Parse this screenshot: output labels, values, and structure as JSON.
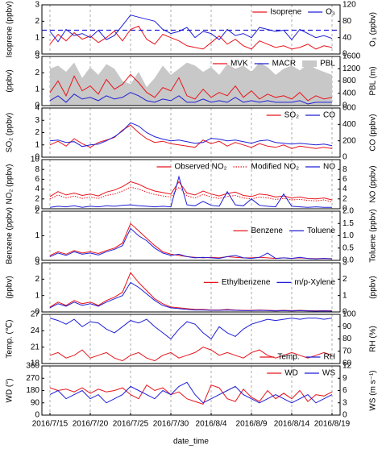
{
  "chart_data": [
    {
      "type": "line",
      "ylabel": "Isoprene (ppbv)",
      "y2label": "O₃ (ppbv)",
      "ylim": [
        0,
        3
      ],
      "yticks": [
        0,
        1,
        2,
        3
      ],
      "y2lim": [
        0,
        120
      ],
      "y2ticks": [
        0,
        40,
        80,
        120
      ],
      "legend": "top-right",
      "hline": 1.45,
      "hline_color": "#1f1fd6",
      "series": [
        {
          "name": "Isoprene",
          "color": "#e8141c",
          "values": [
            0.6,
            1.2,
            0.8,
            1.3,
            0.9,
            1.1,
            0.7,
            1.0,
            1.4,
            0.8,
            1.5,
            1.7,
            0.9,
            0.6,
            1.2,
            1.0,
            0.8,
            0.5,
            0.4,
            0.3,
            0.7,
            1.1,
            0.6,
            0.9,
            0.5,
            0.3,
            0.8,
            0.6,
            0.4,
            0.5,
            0.3,
            0.4,
            0.6,
            0.3,
            0.5,
            0.4
          ]
        },
        {
          "name": "O₃",
          "color": "#1f1fd6",
          "axis": "y2",
          "values": [
            55,
            30,
            60,
            45,
            50,
            40,
            58,
            35,
            45,
            70,
            95,
            90,
            85,
            80,
            60,
            50,
            55,
            65,
            40,
            55,
            50,
            35,
            60,
            45,
            50,
            40,
            65,
            60,
            55,
            58,
            35,
            60,
            50,
            40,
            45,
            38
          ]
        }
      ]
    },
    {
      "type": "line",
      "ylabel": "(ppbv)",
      "y2label": "PBL (m)",
      "ylim": [
        0,
        3
      ],
      "yticks": [
        0,
        1,
        2,
        3
      ],
      "y2lim": [
        0,
        1600
      ],
      "y2ticks": [
        0,
        400,
        800,
        1200,
        1600
      ],
      "legend": "top-right",
      "series": [
        {
          "name": "MVK",
          "color": "#e8141c",
          "values": [
            0.8,
            1.5,
            0.6,
            1.8,
            0.9,
            1.2,
            0.7,
            1.6,
            1.0,
            1.3,
            1.9,
            1.4,
            0.8,
            0.5,
            1.1,
            0.9,
            1.7,
            0.6,
            0.4,
            1.0,
            0.5,
            0.8,
            0.6,
            1.2,
            0.5,
            0.9,
            0.4,
            0.7,
            0.5,
            0.6,
            0.4,
            0.8,
            0.3,
            0.6,
            0.4,
            0.5
          ]
        },
        {
          "name": "MACR",
          "color": "#1f1fd6",
          "values": [
            0.3,
            0.6,
            0.2,
            0.7,
            0.4,
            0.5,
            0.3,
            0.6,
            0.4,
            0.5,
            0.8,
            0.6,
            0.3,
            0.2,
            0.4,
            0.3,
            0.6,
            0.2,
            0.2,
            0.4,
            0.2,
            0.3,
            0.2,
            0.5,
            0.2,
            0.3,
            0.2,
            0.3,
            0.2,
            0.2,
            0.2,
            0.3,
            0.1,
            0.2,
            0.2,
            0.2
          ]
        },
        {
          "name": "PBL",
          "color": "#c8c8c8",
          "axis": "y2",
          "style": "area",
          "values": [
            1200,
            1300,
            1100,
            1400,
            900,
            1250,
            1000,
            1350,
            1200,
            800,
            700,
            1100,
            600,
            900,
            1300,
            1000,
            1200,
            1400,
            1300,
            1100,
            1250,
            1000,
            1350,
            1200,
            1300,
            1100,
            1400,
            1250,
            1000,
            1200,
            1300,
            1150,
            1350,
            1200,
            1100,
            1000
          ]
        }
      ]
    },
    {
      "type": "line",
      "ylabel": "SO₂ (ppbv)",
      "y2label": "CO (ppbv)",
      "ylim": [
        0,
        4
      ],
      "yticks": [
        0,
        1,
        2,
        3,
        4
      ],
      "y2lim": [
        0,
        600
      ],
      "y2ticks": [
        0,
        200,
        400,
        600
      ],
      "legend": "top-right",
      "series": [
        {
          "name": "SO₂",
          "color": "#e8141c",
          "values": [
            1.0,
            1.3,
            0.9,
            1.5,
            1.1,
            0.8,
            1.2,
            1.4,
            1.6,
            2.2,
            2.6,
            2.0,
            1.5,
            1.2,
            1.3,
            1.1,
            1.0,
            0.9,
            0.8,
            1.4,
            1.1,
            1.3,
            0.9,
            1.2,
            1.0,
            0.8,
            1.1,
            0.9,
            0.8,
            1.0,
            0.7,
            0.9,
            0.8,
            0.7,
            0.8,
            0.7
          ]
        },
        {
          "name": "CO",
          "color": "#1f1fd6",
          "axis": "y2",
          "values": [
            200,
            210,
            180,
            190,
            130,
            150,
            160,
            200,
            250,
            320,
            420,
            380,
            300,
            250,
            220,
            200,
            210,
            190,
            170,
            180,
            230,
            220,
            200,
            210,
            190,
            170,
            200,
            210,
            180,
            170,
            160,
            170,
            160,
            150,
            160,
            140
          ]
        }
      ]
    },
    {
      "type": "line",
      "ylabel": "NO₂ (ppbv)",
      "y2label": "NO (ppbv)",
      "ylim": [
        0,
        10
      ],
      "yticks": [
        0,
        2,
        4,
        6,
        8,
        10
      ],
      "y2lim": [
        0,
        10
      ],
      "y2ticks": [
        0,
        2,
        4,
        6,
        8
      ],
      "legend": "top-right",
      "series": [
        {
          "name": "Observed NO₂",
          "color": "#e8141c",
          "values": [
            2.5,
            3.5,
            2.8,
            3.2,
            2.7,
            3.0,
            2.6,
            3.4,
            3.8,
            4.5,
            5.5,
            5.0,
            4.2,
            3.6,
            3.3,
            3.0,
            5.5,
            3.2,
            2.8,
            3.6,
            3.0,
            2.6,
            3.1,
            3.4,
            2.7,
            2.5,
            3.0,
            2.8,
            2.4,
            2.6,
            2.2,
            2.4,
            2.1,
            2.0,
            2.2,
            1.8
          ]
        },
        {
          "name": "Modified NO₂",
          "color": "#e8141c",
          "style": "dotted",
          "values": [
            2.0,
            2.8,
            2.2,
            2.6,
            2.1,
            2.4,
            2.1,
            2.7,
            3.0,
            3.6,
            4.4,
            4.0,
            3.4,
            2.9,
            2.6,
            2.4,
            4.4,
            2.6,
            2.2,
            2.9,
            2.4,
            2.1,
            2.5,
            2.7,
            2.2,
            2.0,
            2.4,
            2.2,
            1.9,
            2.1,
            1.8,
            1.9,
            1.7,
            1.6,
            1.8,
            1.4
          ]
        },
        {
          "name": "NO",
          "color": "#1f1fd6",
          "axis": "y2",
          "values": [
            0.3,
            0.5,
            0.4,
            0.6,
            0.3,
            0.5,
            0.4,
            0.6,
            0.5,
            0.7,
            0.8,
            0.6,
            0.5,
            0.4,
            0.5,
            0.4,
            6.5,
            0.8,
            0.6,
            1.5,
            0.7,
            0.5,
            3.5,
            0.8,
            0.6,
            2.0,
            0.7,
            0.5,
            0.4,
            3.0,
            0.5,
            0.4,
            0.3,
            0.4,
            0.3,
            0.3
          ]
        }
      ]
    },
    {
      "type": "line",
      "ylabel": "Benzene (ppbv)",
      "y2label": "Toluene (ppbv)",
      "ylim": [
        0,
        2
      ],
      "yticks": [
        0,
        1,
        2
      ],
      "y2lim": [
        0,
        2
      ],
      "y2ticks": [
        {
          "value": 0,
          "label": "0.0"
        },
        {
          "value": 0.5,
          "label": "0.5"
        },
        {
          "value": 1,
          "label": "1.0"
        },
        {
          "value": 1.5,
          "label": "1.5"
        },
        {
          "value": 2,
          "label": "2.0"
        }
      ],
      "legend": "middle-right",
      "series": [
        {
          "name": "Benzene",
          "color": "#e8141c",
          "values": [
            0.2,
            0.35,
            0.25,
            0.4,
            0.3,
            0.35,
            0.28,
            0.4,
            0.5,
            0.7,
            1.5,
            1.2,
            0.9,
            0.6,
            0.35,
            0.25,
            0.2,
            0.15,
            0.12,
            0.1,
            0.12,
            0.1,
            0.15,
            0.12,
            0.1,
            0.1,
            0.12,
            0.1,
            0.08,
            0.1,
            0.08,
            0.1,
            0.08,
            0.07,
            0.08,
            0.07
          ]
        },
        {
          "name": "Toluene",
          "color": "#1f1fd6",
          "axis": "y2",
          "values": [
            0.15,
            0.3,
            0.2,
            0.35,
            0.25,
            0.3,
            0.22,
            0.35,
            0.45,
            0.6,
            1.3,
            1.0,
            0.8,
            0.5,
            0.3,
            0.2,
            0.25,
            0.15,
            0.1,
            0.12,
            0.1,
            0.08,
            0.15,
            0.2,
            0.1,
            0.08,
            0.12,
            0.3,
            0.08,
            0.1,
            0.08,
            0.12,
            0.08,
            0.06,
            0.08,
            0.06
          ]
        }
      ]
    },
    {
      "type": "line",
      "ylabel": "(ppbv)",
      "y2label": "(ppbv)",
      "ylim": [
        0,
        3
      ],
      "yticks": [
        0,
        1,
        2,
        3
      ],
      "y2lim": [
        0,
        3
      ],
      "y2ticks": [
        0,
        1,
        2,
        3
      ],
      "legend": "middle-right",
      "series": [
        {
          "name": "Ethylbenzene",
          "color": "#e8141c",
          "values": [
            0.3,
            0.6,
            0.4,
            0.7,
            0.5,
            0.6,
            0.4,
            0.7,
            0.9,
            1.2,
            2.4,
            1.8,
            1.3,
            0.8,
            0.5,
            0.3,
            0.25,
            0.2,
            0.15,
            0.15,
            0.12,
            0.12,
            0.15,
            0.12,
            0.1,
            0.1,
            0.12,
            0.1,
            0.08,
            0.1,
            0.08,
            0.1,
            0.08,
            0.07,
            0.08,
            0.07
          ]
        },
        {
          "name": "m/p-Xylene",
          "color": "#1f1fd6",
          "axis": "y2",
          "values": [
            0.25,
            0.5,
            0.35,
            0.6,
            0.4,
            0.5,
            0.35,
            0.6,
            0.8,
            1.0,
            1.8,
            1.5,
            1.1,
            0.7,
            0.4,
            0.25,
            0.2,
            0.15,
            0.12,
            0.12,
            0.1,
            0.1,
            0.12,
            0.1,
            0.08,
            0.08,
            0.1,
            0.08,
            0.06,
            0.08,
            0.06,
            0.08,
            0.06,
            0.05,
            0.06,
            0.05
          ]
        }
      ]
    },
    {
      "type": "line",
      "ylabel": "Temp. (℃)",
      "y2label": "RH (%)",
      "ylim": [
        18,
        27
      ],
      "yticks": [
        18,
        21,
        24,
        27
      ],
      "y2lim": [
        60,
        100
      ],
      "y2ticks": [
        60,
        70,
        80,
        90,
        100
      ],
      "legend": "bottom-right",
      "series": [
        {
          "name": "Temp.",
          "color": "#e8141c",
          "values": [
            19.5,
            20,
            19,
            19.5,
            20.5,
            19,
            19.5,
            20,
            19,
            18.5,
            19.5,
            20,
            19,
            18.5,
            19.5,
            20,
            19,
            19.5,
            20,
            21,
            20.5,
            19.5,
            20,
            19.5,
            19,
            20,
            20.5,
            19.5,
            19,
            19.5,
            20,
            19.5,
            19,
            19.5,
            20,
            19.5
          ]
        },
        {
          "name": "RH",
          "color": "#1f1fd6",
          "axis": "y2",
          "values": [
            97,
            95,
            92,
            96,
            90,
            94,
            93,
            88,
            85,
            90,
            95,
            93,
            96,
            90,
            85,
            80,
            88,
            94,
            92,
            85,
            80,
            90,
            85,
            82,
            88,
            92,
            94,
            96,
            95,
            96,
            97,
            96,
            97,
            97,
            96,
            97
          ]
        }
      ]
    },
    {
      "type": "line",
      "ylabel": "WD (°)",
      "y2label": "WS (m s⁻¹)",
      "ylim": [
        0,
        360
      ],
      "yticks": [
        0,
        90,
        180,
        270,
        360
      ],
      "y2lim": [
        0,
        12
      ],
      "y2ticks": [
        0,
        3,
        6,
        9,
        12
      ],
      "legend": "top-right",
      "xlabel": "date_time",
      "x": [
        "2016/7/15",
        "2016/7/16",
        "2016/7/17",
        "2016/7/18",
        "2016/7/19",
        "2016/7/20",
        "2016/7/21",
        "2016/7/22",
        "2016/7/23",
        "2016/7/24",
        "2016/7/25",
        "2016/7/26",
        "2016/7/27",
        "2016/7/28",
        "2016/7/29",
        "2016/7/30",
        "2016/7/31",
        "2016/8/1",
        "2016/8/2",
        "2016/8/3",
        "2016/8/4",
        "2016/8/5",
        "2016/8/6",
        "2016/8/7",
        "2016/8/8",
        "2016/8/9",
        "2016/8/10",
        "2016/8/11",
        "2016/8/12",
        "2016/8/13",
        "2016/8/14",
        "2016/8/15",
        "2016/8/16",
        "2016/8/17",
        "2016/8/18",
        "2016/8/19"
      ],
      "xlim": [
        "2016/7/14",
        "2016/8/20"
      ],
      "xticks": [
        "2016/7/15",
        "2016/7/20",
        "2016/7/25",
        "2016/7/30",
        "2016/8/4",
        "2016/8/9",
        "2016/8/14",
        "2016/8/19"
      ],
      "series": [
        {
          "name": "WD",
          "color": "#e8141c",
          "values": [
            200,
            180,
            190,
            170,
            200,
            160,
            190,
            170,
            180,
            200,
            150,
            120,
            220,
            180,
            200,
            150,
            170,
            120,
            100,
            80,
            220,
            200,
            120,
            100,
            190,
            130,
            100,
            180,
            120,
            160,
            120,
            180,
            100,
            150,
            140,
            170
          ]
        },
        {
          "name": "WS",
          "color": "#1f1fd6",
          "axis": "y2",
          "values": [
            5,
            6,
            4,
            5,
            6,
            4,
            5,
            3,
            4,
            5,
            7,
            6,
            5,
            4,
            6,
            5,
            7,
            8,
            5,
            3,
            4,
            5,
            6,
            7,
            5,
            4,
            3,
            4,
            5,
            4,
            3,
            4,
            5,
            3,
            4,
            5
          ]
        }
      ]
    }
  ]
}
